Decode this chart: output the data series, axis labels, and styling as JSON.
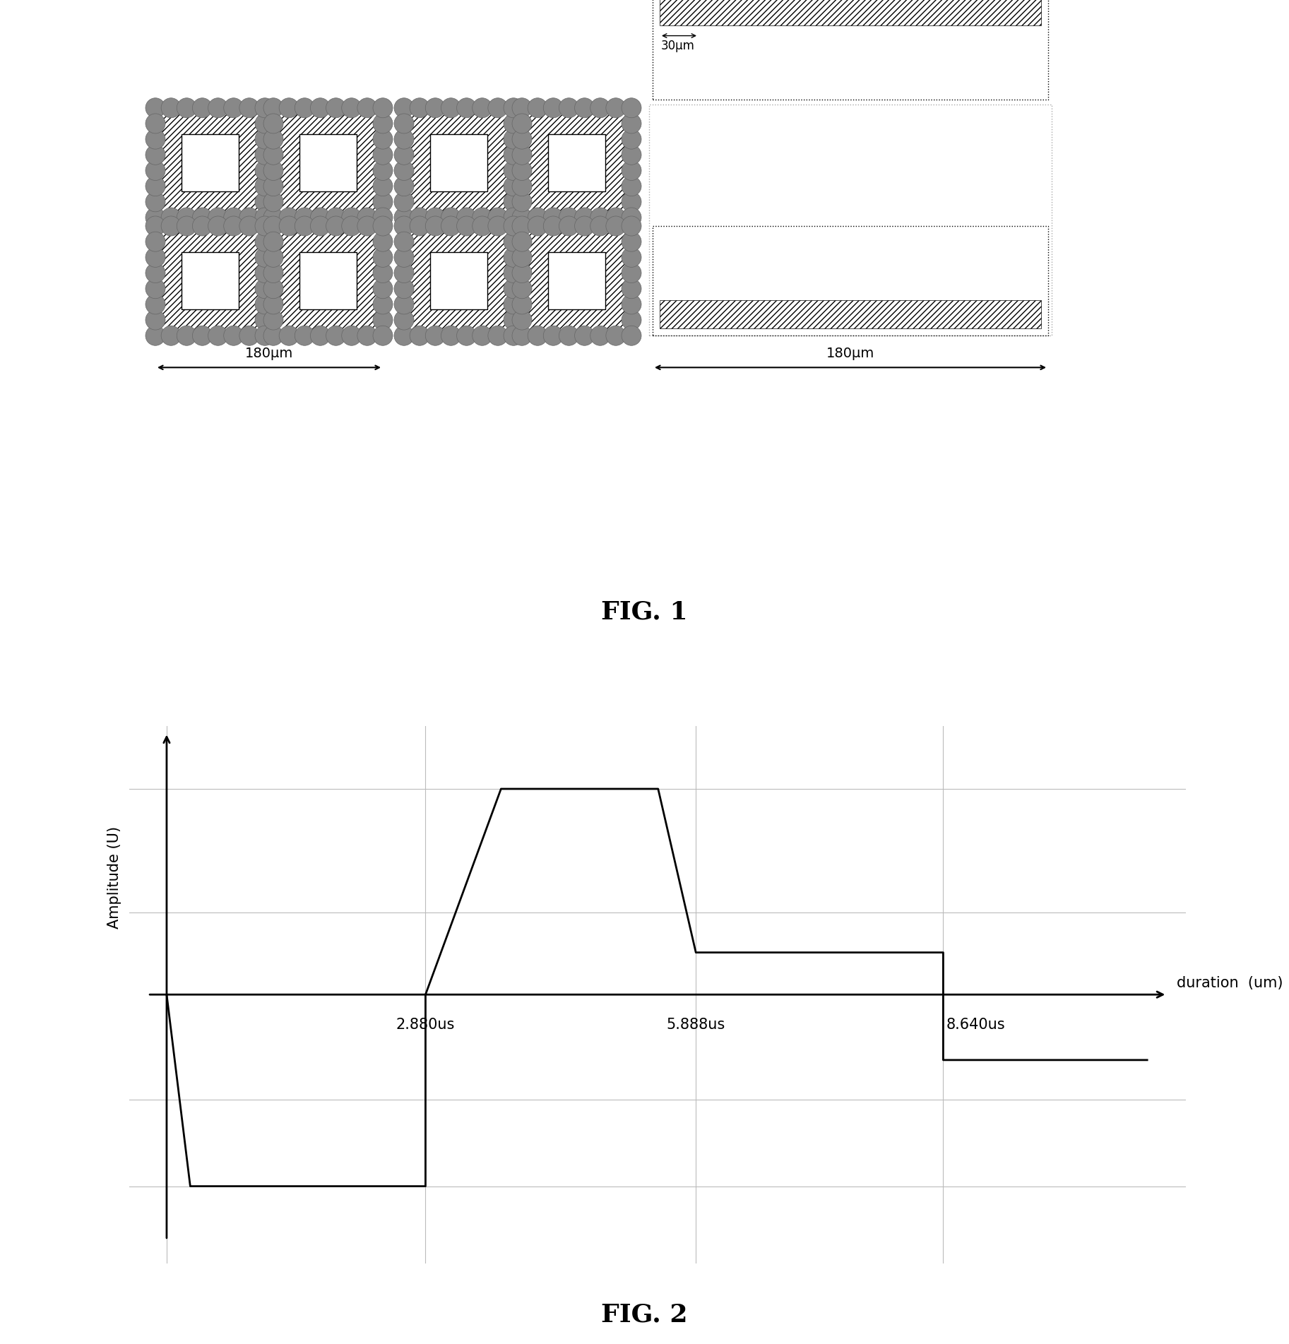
{
  "fig1_label": "FIG. 1",
  "fig2_label": "FIG. 2",
  "fig1_label_fontsize": 26,
  "fig2_label_fontsize": 26,
  "label_fontweight": "bold",
  "background_color": "#ffffff",
  "hatch_pattern": "////",
  "grid_color": "#bbbbbb",
  "line_color": "#000000",
  "measure_30um": "30μm",
  "measure_180um_left": "180μm",
  "measure_180um_right": "180μm",
  "fig2_xlabel": "duration  (um)",
  "fig2_ylabel": "Amplitude (U)",
  "fig2_label_2880": "2.880us",
  "fig2_label_5888": "5.888us",
  "fig2_label_8640": "8.640us",
  "dot_color": "#888888",
  "dot_ec": "#666666"
}
